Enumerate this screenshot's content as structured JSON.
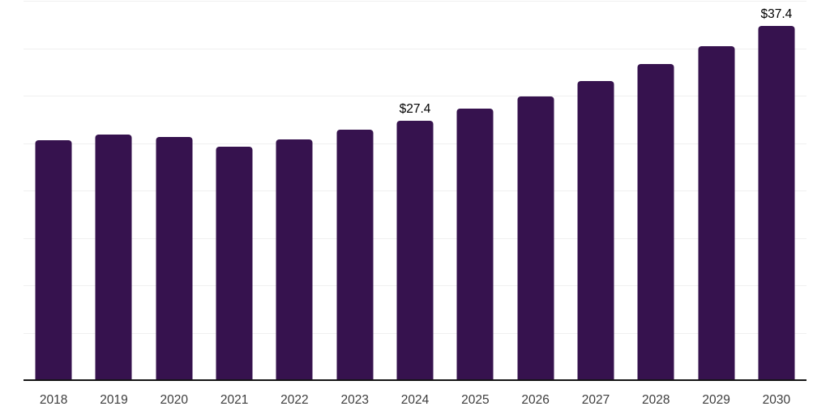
{
  "chart_data": {
    "type": "bar",
    "title": "",
    "xlabel": "",
    "ylabel": "",
    "categories": [
      "2018",
      "2019",
      "2020",
      "2021",
      "2022",
      "2023",
      "2024",
      "2025",
      "2026",
      "2027",
      "2028",
      "2029",
      "2030"
    ],
    "values": [
      25.4,
      26.0,
      25.7,
      24.7,
      25.5,
      26.5,
      27.4,
      28.7,
      30.0,
      31.6,
      33.4,
      35.3,
      37.4
    ],
    "data_labels": [
      "",
      "",
      "",
      "",
      "",
      "",
      "$27.4",
      "",
      "",
      "",
      "",
      "",
      "$37.4"
    ],
    "ylim": [
      0,
      40
    ],
    "grid_step": 5,
    "grid": true,
    "legend": false,
    "colors": {
      "bar": "#36124e",
      "gridline": "#f0f0f0",
      "axis_line": "#141414",
      "tick_label": "#3d3d3d",
      "data_label": "#000000",
      "background": "#ffffff"
    }
  }
}
